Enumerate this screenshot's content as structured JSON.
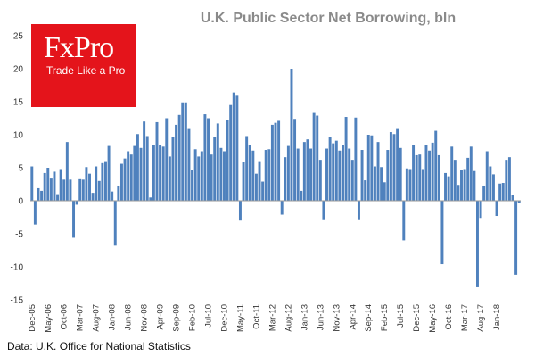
{
  "brand": {
    "name": "FxPro",
    "tagline": "Trade Like a Pro",
    "color": "#e4141b"
  },
  "source_note": "Data: U.K. Office for National Statistics",
  "chart_data": {
    "type": "bar",
    "title": "U.K. Public Sector Net Borrowing, bln",
    "xlabel": "",
    "ylabel": "",
    "ylim": [
      -15,
      25
    ],
    "yticks": [
      -15,
      -10,
      -5,
      0,
      5,
      10,
      15,
      20,
      25
    ],
    "grid": false,
    "bar_color": "#4f81bd",
    "x_tick_labels": [
      "Dec-05",
      "May-06",
      "Oct-06",
      "Mar-07",
      "Aug-07",
      "Jan-08",
      "Jun-08",
      "Nov-08",
      "Apr-09",
      "Sep-09",
      "Feb-10",
      "Jul-10",
      "Dec-10",
      "May-11",
      "Oct-11",
      "Mar-12",
      "Aug-12",
      "Jan-13",
      "Jun-13",
      "Nov-13",
      "Apr-14",
      "Sep-14",
      "Feb-15",
      "Jul-15",
      "Dec-15",
      "May-16",
      "Oct-16",
      "Mar-17",
      "Aug-17",
      "Jan-18"
    ],
    "series": [
      {
        "values": [
          5.2,
          -3.6,
          1.9,
          1.5,
          4.2,
          5.0,
          3.5,
          4.4,
          1.0,
          4.8,
          3.2,
          8.9,
          3.2,
          -5.6,
          -0.6,
          3.4,
          3.2,
          5.1,
          4.1,
          1.2,
          5.2,
          3.0,
          5.7,
          6.0,
          8.3,
          1.4,
          -6.8,
          2.3,
          5.6,
          6.4,
          7.5,
          7.0,
          8.3,
          10.1,
          8.0,
          12.0,
          9.8,
          0.5,
          8.4,
          11.9,
          8.5,
          8.2,
          12.5,
          6.7,
          9.6,
          11.5,
          13.0,
          14.9,
          14.9,
          11.0,
          4.7,
          7.8,
          6.7,
          7.5,
          13.1,
          12.5,
          7.0,
          9.6,
          11.7,
          8.0,
          7.5,
          12.2,
          14.5,
          16.4,
          15.9,
          -3.0,
          5.9,
          9.8,
          8.5,
          7.6,
          4.1,
          6.0,
          2.9,
          7.7,
          7.8,
          11.5,
          11.8,
          12.1,
          -2.1,
          6.6,
          8.3,
          20.0,
          12.4,
          7.9,
          1.5,
          8.9,
          9.3,
          7.9,
          13.3,
          12.9,
          6.2,
          -2.8,
          7.9,
          9.6,
          8.7,
          9.1,
          7.6,
          8.5,
          12.7,
          7.9,
          6.2,
          12.6,
          -2.8,
          7.7,
          3.1,
          10.0,
          9.9,
          5.2,
          8.9,
          5.1,
          2.8,
          7.7,
          10.4,
          10.1,
          11.0,
          8.0,
          -6.0,
          4.9,
          4.8,
          8.5,
          6.9,
          7.0,
          4.8,
          8.4,
          7.6,
          8.8,
          10.6,
          6.9,
          -9.6,
          4.2,
          3.7,
          8.2,
          6.2,
          2.4,
          4.7,
          4.8,
          6.5,
          8.2,
          4.5,
          -13.1,
          -2.6,
          2.3,
          7.5,
          5.2,
          4.0,
          -2.3,
          2.6,
          2.7,
          6.2,
          6.6,
          0.9,
          -11.2,
          -0.3
        ]
      }
    ]
  }
}
